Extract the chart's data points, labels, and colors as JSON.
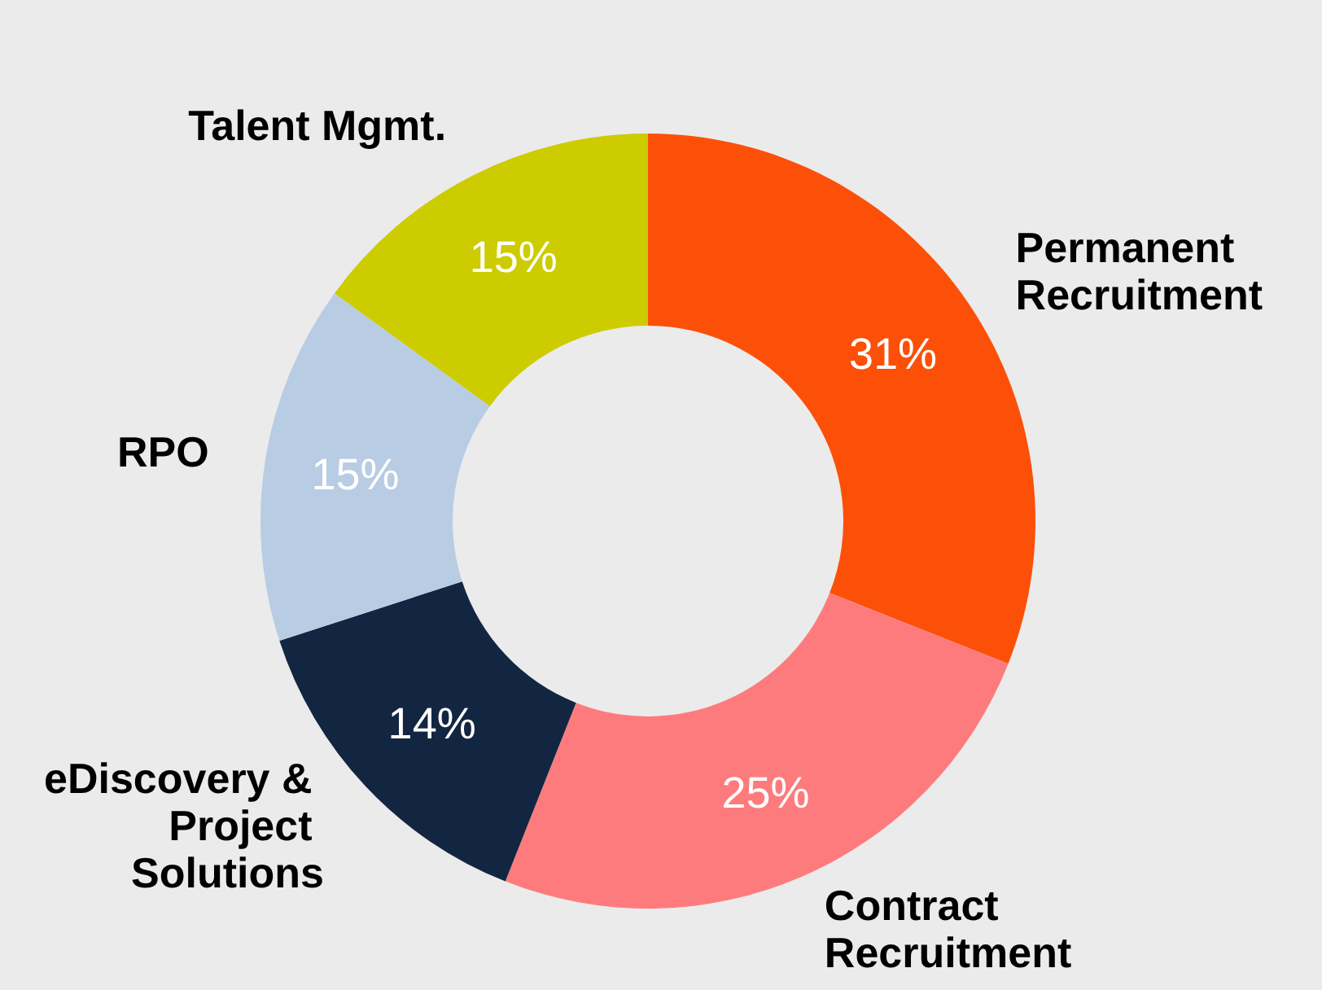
{
  "chart_data": {
    "type": "donut",
    "categories": [
      "Permanent Recruitment",
      "Contract Recruitment",
      "eDiscovery & Project Solutions",
      "RPO",
      "Talent Mgmt."
    ],
    "values": [
      31,
      25,
      14,
      15,
      15
    ],
    "colors": [
      "#fc5008",
      "#fe7b7d",
      "#132641",
      "#b8cce4",
      "#cccc00"
    ],
    "value_labels": [
      "31%",
      "25%",
      "14%",
      "15%",
      "15%"
    ]
  }
}
